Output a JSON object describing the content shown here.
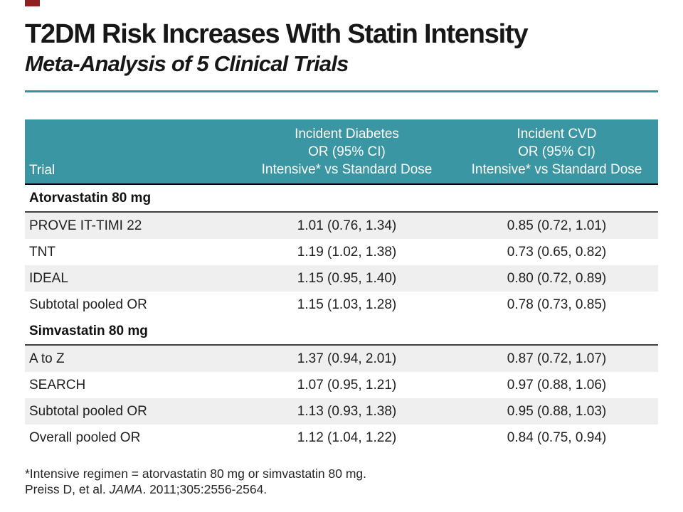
{
  "slide": {
    "title": "T2DM Risk Increases With Statin Intensity",
    "subtitle": "Meta-Analysis of 5 Clinical Trials",
    "accent_color": "#8e2020",
    "divider_color": "#35929e"
  },
  "table": {
    "header_bg": "#3a96a2",
    "stripe_color": "#efefef",
    "header": {
      "trial": "Trial",
      "diabetes_line1": "Incident Diabetes",
      "diabetes_line2": "OR (95% CI)",
      "diabetes_line3": "Intensive* vs Standard Dose",
      "cvd_line1": "Incident CVD",
      "cvd_line2": "OR (95% CI)",
      "cvd_line3": "Intensive* vs Standard Dose"
    },
    "rows": [
      {
        "type": "section",
        "trial": "Atorvastatin 80 mg",
        "diabetes": "",
        "cvd": ""
      },
      {
        "type": "data",
        "shade": true,
        "trial": "PROVE IT-TIMI 22",
        "diabetes": "1.01 (0.76, 1.34)",
        "cvd": "0.85 (0.72, 1.01)"
      },
      {
        "type": "data",
        "shade": false,
        "trial": "TNT",
        "diabetes": "1.19 (1.02, 1.38)",
        "cvd": "0.73 (0.65, 0.82)"
      },
      {
        "type": "data",
        "shade": true,
        "trial": "IDEAL",
        "diabetes": "1.15 (0.95, 1.40)",
        "cvd": "0.80 (0.72, 0.89)"
      },
      {
        "type": "data",
        "shade": false,
        "trial": "Subtotal pooled OR",
        "diabetes": "1.15 (1.03, 1.28)",
        "cvd": "0.78 (0.73, 0.85)"
      },
      {
        "type": "section",
        "trial": "Simvastatin 80 mg",
        "diabetes": "",
        "cvd": ""
      },
      {
        "type": "data",
        "shade": true,
        "trial": "A to Z",
        "diabetes": "1.37 (0.94, 2.01)",
        "cvd": "0.87 (0.72, 1.07)"
      },
      {
        "type": "data",
        "shade": false,
        "trial": "SEARCH",
        "diabetes": "1.07 (0.95, 1.21)",
        "cvd": "0.97 (0.88, 1.06)"
      },
      {
        "type": "data",
        "shade": true,
        "trial": "Subtotal pooled OR",
        "diabetes": "1.13 (0.93, 1.38)",
        "cvd": "0.95 (0.88, 1.03)"
      },
      {
        "type": "data",
        "shade": false,
        "trial": "Overall pooled OR",
        "diabetes": "1.12 (1.04, 1.22)",
        "cvd": "0.84 (0.75, 0.94)"
      }
    ]
  },
  "footnotes": {
    "line1": "*Intensive regimen = atorvastatin 80 mg or simvastatin 80 mg.",
    "ref_pre": "Preiss D, et al. ",
    "ref_italic": "JAMA",
    "ref_post": ". 2011;305:2556-2564."
  }
}
